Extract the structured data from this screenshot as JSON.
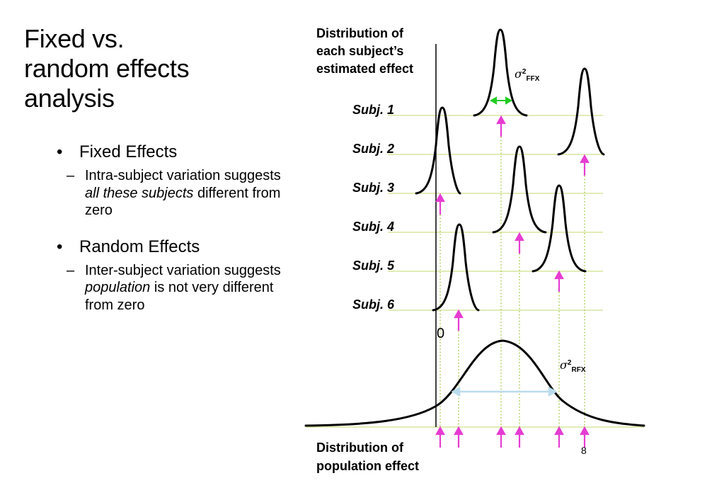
{
  "title": {
    "line1": "Fixed vs.",
    "line2": "random effects",
    "line3": "analysis"
  },
  "bullets": [
    {
      "heading": "Fixed Effects",
      "sub_parts": [
        "Intra-subject variation suggests ",
        "all these subjects",
        " different from zero"
      ]
    },
    {
      "heading": "Random Effects",
      "sub_parts": [
        "Inter-subject variation suggests ",
        "population",
        " is not very different from zero"
      ]
    }
  ],
  "diagram": {
    "top_label": [
      "Distribution of",
      "each subject’s",
      "estimated effect"
    ],
    "bottom_label": [
      "Distribution of",
      "population effect"
    ],
    "subjects": [
      "Subj. 1",
      "Subj. 2",
      "Subj. 3",
      "Subj. 4",
      "Subj. 5",
      "Subj. 6"
    ],
    "zero_label": "0",
    "sigma_ffx": {
      "symbol": "σ",
      "sup": "2",
      "sub": "FFX"
    },
    "sigma_rfx": {
      "symbol": "σ",
      "sup": "2",
      "sub": "RFX"
    }
  },
  "slide_number": "8",
  "colors": {
    "grid_line": "#cde08a",
    "dotted_line": "#a6c84a",
    "arrow": "#e63cd2",
    "ffx_width_arrow": "#22cc22",
    "rfx_width_arrow": "#b9dcec",
    "curve": "#000000"
  }
}
